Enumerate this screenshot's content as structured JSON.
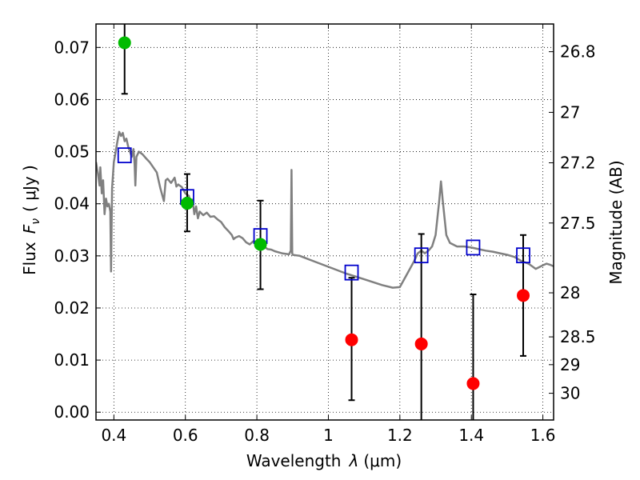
{
  "chart_data": {
    "type": "scatter",
    "xlabel_text": "Wavelength",
    "xlabel_symbol": "λ",
    "xlabel_unit": "(μm)",
    "ylabel_text": "Flux",
    "ylabel_symbol": "F",
    "ylabel_subscript": "ν",
    "ylabel_unit": "( μJy )",
    "y2label": "Magnitude (AB)",
    "xlim": [
      0.35,
      1.63
    ],
    "ylim": [
      -0.0015,
      0.0745
    ],
    "xticks": [
      0.4,
      0.6,
      0.8,
      1.0,
      1.2,
      1.4,
      1.6
    ],
    "xtick_labels": [
      "0.4",
      "0.6",
      "0.8",
      "1",
      "1.2",
      "1.4",
      "1.6"
    ],
    "yticks": [
      0.0,
      0.01,
      0.02,
      0.03,
      0.04,
      0.05,
      0.06,
      0.07
    ],
    "ytick_labels": [
      "0.00",
      "0.01",
      "0.02",
      "0.03",
      "0.04",
      "0.05",
      "0.06",
      "0.07"
    ],
    "magnitude_ticks": [
      26.8,
      27,
      27.2,
      27.5,
      28,
      28.5,
      29,
      30
    ],
    "magnitude_tick_labels": [
      "26.8",
      "27",
      "27.2",
      "27.5",
      "28",
      "28.5",
      "29",
      "30"
    ],
    "grid": true,
    "colors": {
      "sed": "#808080",
      "detections": "#00bb00",
      "upper_limits": "#ff0000",
      "model": "#0000cc",
      "errorbar": "#000000"
    },
    "series": [
      {
        "name": "sed_template",
        "style": "line",
        "points": [
          [
            0.35,
            0.048
          ],
          [
            0.355,
            0.046
          ],
          [
            0.36,
            0.0435
          ],
          [
            0.362,
            0.047
          ],
          [
            0.366,
            0.042
          ],
          [
            0.37,
            0.0445
          ],
          [
            0.374,
            0.038
          ],
          [
            0.378,
            0.041
          ],
          [
            0.382,
            0.0395
          ],
          [
            0.386,
            0.04
          ],
          [
            0.39,
            0.0385
          ],
          [
            0.392,
            0.027
          ],
          [
            0.395,
            0.043
          ],
          [
            0.4,
            0.048
          ],
          [
            0.405,
            0.05
          ],
          [
            0.41,
            0.052
          ],
          [
            0.415,
            0.0538
          ],
          [
            0.42,
            0.053
          ],
          [
            0.425,
            0.0536
          ],
          [
            0.43,
            0.052
          ],
          [
            0.435,
            0.0525
          ],
          [
            0.44,
            0.051
          ],
          [
            0.445,
            0.05
          ],
          [
            0.45,
            0.049
          ],
          [
            0.455,
            0.0505
          ],
          [
            0.458,
            0.0475
          ],
          [
            0.46,
            0.0435
          ],
          [
            0.463,
            0.049
          ],
          [
            0.47,
            0.05
          ],
          [
            0.48,
            0.0495
          ],
          [
            0.49,
            0.0487
          ],
          [
            0.5,
            0.048
          ],
          [
            0.51,
            0.047
          ],
          [
            0.52,
            0.046
          ],
          [
            0.53,
            0.043
          ],
          [
            0.54,
            0.0405
          ],
          [
            0.545,
            0.0445
          ],
          [
            0.55,
            0.0448
          ],
          [
            0.56,
            0.044
          ],
          [
            0.57,
            0.045
          ],
          [
            0.575,
            0.0433
          ],
          [
            0.58,
            0.0437
          ],
          [
            0.59,
            0.0432
          ],
          [
            0.6,
            0.042
          ],
          [
            0.61,
            0.0415
          ],
          [
            0.615,
            0.0395
          ],
          [
            0.62,
            0.0408
          ],
          [
            0.625,
            0.038
          ],
          [
            0.63,
            0.0395
          ],
          [
            0.635,
            0.0372
          ],
          [
            0.64,
            0.0385
          ],
          [
            0.65,
            0.0378
          ],
          [
            0.66,
            0.0383
          ],
          [
            0.67,
            0.0375
          ],
          [
            0.68,
            0.0376
          ],
          [
            0.69,
            0.037
          ],
          [
            0.7,
            0.0365
          ],
          [
            0.71,
            0.0355
          ],
          [
            0.72,
            0.0348
          ],
          [
            0.73,
            0.034
          ],
          [
            0.735,
            0.0332
          ],
          [
            0.74,
            0.0335
          ],
          [
            0.75,
            0.0338
          ],
          [
            0.76,
            0.0334
          ],
          [
            0.77,
            0.0326
          ],
          [
            0.78,
            0.0322
          ],
          [
            0.79,
            0.0328
          ],
          [
            0.8,
            0.0326
          ],
          [
            0.81,
            0.0322
          ],
          [
            0.82,
            0.0318
          ],
          [
            0.83,
            0.0313
          ],
          [
            0.84,
            0.0312
          ],
          [
            0.85,
            0.0309
          ],
          [
            0.86,
            0.0307
          ],
          [
            0.87,
            0.0305
          ],
          [
            0.88,
            0.0304
          ],
          [
            0.89,
            0.0303
          ],
          [
            0.895,
            0.031
          ],
          [
            0.897,
            0.0465
          ],
          [
            0.899,
            0.0305
          ],
          [
            0.9,
            0.0302
          ],
          [
            0.91,
            0.0301
          ],
          [
            0.92,
            0.03
          ],
          [
            0.95,
            0.0292
          ],
          [
            1.0,
            0.0279
          ],
          [
            1.05,
            0.0266
          ],
          [
            1.1,
            0.0255
          ],
          [
            1.15,
            0.0244
          ],
          [
            1.18,
            0.0239
          ],
          [
            1.2,
            0.024
          ],
          [
            1.22,
            0.0265
          ],
          [
            1.24,
            0.029
          ],
          [
            1.25,
            0.0305
          ],
          [
            1.26,
            0.031
          ],
          [
            1.27,
            0.0305
          ],
          [
            1.28,
            0.031
          ],
          [
            1.29,
            0.0318
          ],
          [
            1.3,
            0.034
          ],
          [
            1.31,
            0.0405
          ],
          [
            1.315,
            0.0443
          ],
          [
            1.32,
            0.0405
          ],
          [
            1.33,
            0.034
          ],
          [
            1.34,
            0.0325
          ],
          [
            1.36,
            0.0318
          ],
          [
            1.38,
            0.0318
          ],
          [
            1.4,
            0.0316
          ],
          [
            1.42,
            0.0313
          ],
          [
            1.44,
            0.031
          ],
          [
            1.46,
            0.0308
          ],
          [
            1.48,
            0.0305
          ],
          [
            1.5,
            0.0302
          ],
          [
            1.52,
            0.0298
          ],
          [
            1.54,
            0.029
          ],
          [
            1.56,
            0.0285
          ],
          [
            1.58,
            0.0275
          ],
          [
            1.6,
            0.0282
          ],
          [
            1.61,
            0.0285
          ],
          [
            1.62,
            0.0283
          ],
          [
            1.63,
            0.028
          ]
        ]
      },
      {
        "name": "detections",
        "style": "circle",
        "points": [
          {
            "x": 0.43,
            "y": 0.0709,
            "err_low": 0.0611,
            "err_high": 0.0745
          },
          {
            "x": 0.605,
            "y": 0.0401,
            "err_low": 0.0347,
            "err_high": 0.0457
          },
          {
            "x": 0.81,
            "y": 0.0322,
            "err_low": 0.0236,
            "err_high": 0.0406
          }
        ]
      },
      {
        "name": "upper_limits",
        "style": "circle",
        "points": [
          {
            "x": 1.065,
            "y": 0.0139,
            "err_low": 0.0023,
            "err_high": 0.0258
          },
          {
            "x": 1.26,
            "y": 0.0131,
            "err_low": -0.0015,
            "err_high": 0.0342
          },
          {
            "x": 1.405,
            "y": 0.0055,
            "err_low": -0.0015,
            "err_high": 0.0226
          },
          {
            "x": 1.545,
            "y": 0.0224,
            "err_low": 0.0108,
            "err_high": 0.034
          }
        ]
      },
      {
        "name": "model_photometry",
        "style": "square",
        "points": [
          {
            "x": 0.43,
            "y": 0.0493
          },
          {
            "x": 0.605,
            "y": 0.0413
          },
          {
            "x": 0.81,
            "y": 0.0338
          },
          {
            "x": 1.065,
            "y": 0.0268
          },
          {
            "x": 1.26,
            "y": 0.0301
          },
          {
            "x": 1.405,
            "y": 0.0316
          },
          {
            "x": 1.545,
            "y": 0.0301
          }
        ]
      }
    ]
  }
}
